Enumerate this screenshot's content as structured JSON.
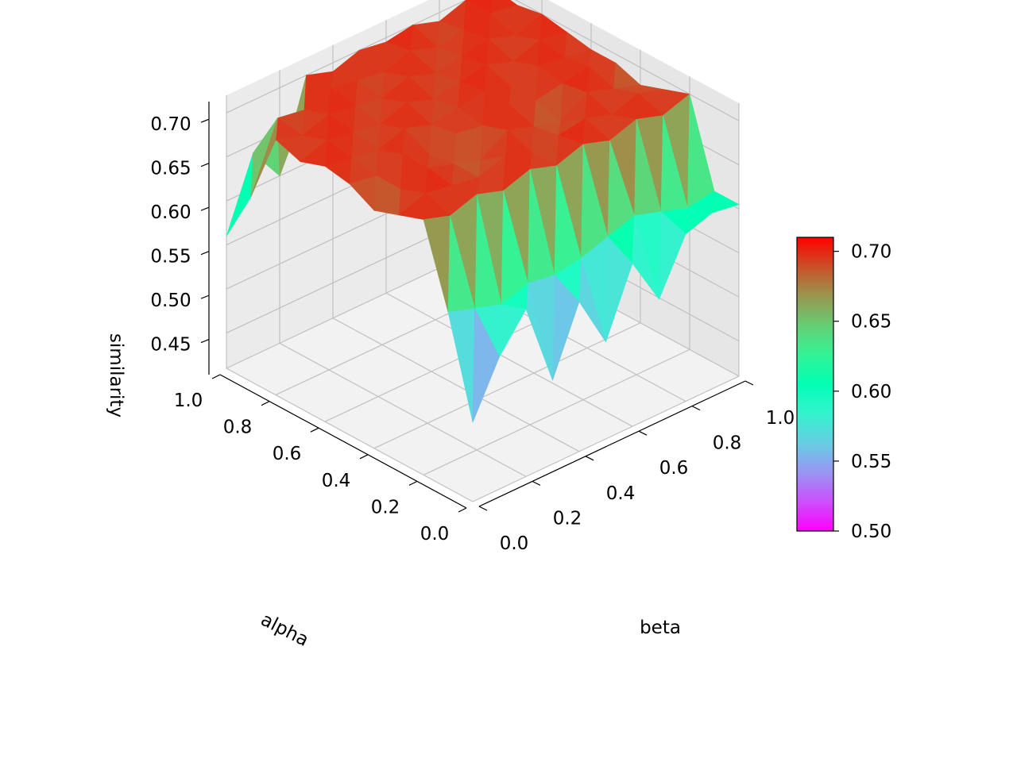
{
  "chart_data": {
    "type": "surface3d",
    "xlabel": "alpha",
    "ylabel": "beta",
    "zlabel": "similarity",
    "xlim": [
      0.0,
      1.0
    ],
    "ylim": [
      0.0,
      1.0
    ],
    "zlim": [
      0.41,
      0.72
    ],
    "x_ticks": [
      "0.0",
      "0.2",
      "0.4",
      "0.6",
      "0.8",
      "1.0"
    ],
    "y_ticks": [
      "0.0",
      "0.2",
      "0.4",
      "0.6",
      "0.8",
      "1.0"
    ],
    "z_ticks": [
      "0.45",
      "0.50",
      "0.55",
      "0.60",
      "0.65",
      "0.70"
    ],
    "grid": true,
    "colormap": "rainbow",
    "colorbar": {
      "range": [
        0.5,
        0.71
      ],
      "ticks": [
        "0.50",
        "0.55",
        "0.60",
        "0.65",
        "0.70"
      ]
    },
    "alpha_values": [
      0.0,
      0.1,
      0.2,
      0.3,
      0.4,
      0.5,
      0.6,
      0.7,
      0.8,
      0.9,
      1.0
    ],
    "beta_values": [
      0.0,
      0.1,
      0.2,
      0.3,
      0.4,
      0.5,
      0.6,
      0.7,
      0.8,
      0.9,
      1.0
    ],
    "similarity": [
      [
        0.5,
        0.56,
        0.6,
        0.505,
        0.58,
        0.52,
        0.595,
        0.54,
        0.6,
        0.61,
        0.605
      ],
      [
        0.61,
        0.6,
        0.59,
        0.6,
        0.595,
        0.6,
        0.61,
        0.62,
        0.61,
        0.6,
        0.605
      ],
      [
        0.7,
        0.69,
        0.7,
        0.69,
        0.7,
        0.69,
        0.7,
        0.69,
        0.7,
        0.69,
        0.7
      ],
      [
        0.69,
        0.7,
        0.695,
        0.69,
        0.7,
        0.69,
        0.695,
        0.7,
        0.69,
        0.7,
        0.69
      ],
      [
        0.68,
        0.69,
        0.7,
        0.69,
        0.68,
        0.7,
        0.69,
        0.68,
        0.7,
        0.69,
        0.68
      ],
      [
        0.695,
        0.69,
        0.7,
        0.685,
        0.695,
        0.69,
        0.7,
        0.69,
        0.695,
        0.7,
        0.69
      ],
      [
        0.7,
        0.695,
        0.69,
        0.7,
        0.69,
        0.695,
        0.7,
        0.69,
        0.7,
        0.695,
        0.69
      ],
      [
        0.69,
        0.7,
        0.695,
        0.69,
        0.7,
        0.69,
        0.695,
        0.7,
        0.69,
        0.7,
        0.695
      ],
      [
        0.7,
        0.69,
        0.7,
        0.695,
        0.69,
        0.7,
        0.69,
        0.695,
        0.7,
        0.69,
        0.7
      ],
      [
        0.62,
        0.695,
        0.69,
        0.7,
        0.695,
        0.69,
        0.7,
        0.69,
        0.695,
        0.7,
        0.695
      ],
      [
        0.56,
        0.64,
        0.6,
        0.7,
        0.69,
        0.7,
        0.695,
        0.7,
        0.69,
        0.7,
        0.7
      ]
    ]
  }
}
